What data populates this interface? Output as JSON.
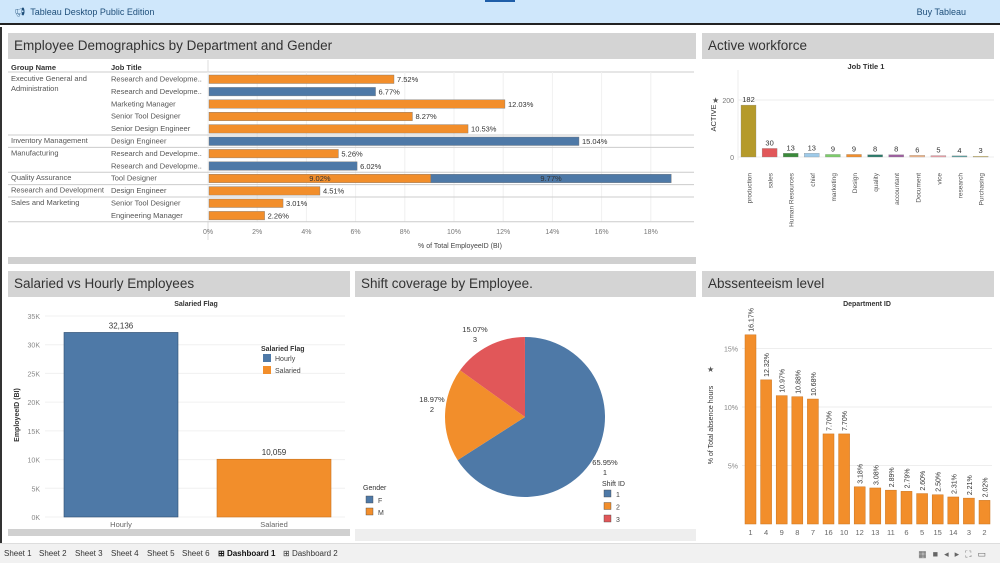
{
  "app": {
    "title": "Tableau Desktop Public Edition",
    "buy_label": "Buy Tableau",
    "brand_icon": "megaphone-icon"
  },
  "panels": {
    "demographics": {
      "title": "Employee Demographics by Department and Gender"
    },
    "active": {
      "title": "Active workforce"
    },
    "salaried": {
      "title": "Salaried vs Hourly Employees"
    },
    "shift": {
      "title": "Shift coverage by Employee."
    },
    "absent": {
      "title": "Abssenteeism level"
    }
  },
  "tabs": [
    {
      "label": "Sheet 1"
    },
    {
      "label": "Sheet 2"
    },
    {
      "label": "Sheet 3"
    },
    {
      "label": "Sheet 4"
    },
    {
      "label": "Sheet 5"
    },
    {
      "label": "Sheet 6"
    },
    {
      "label": "Dashboard 1",
      "active": true
    },
    {
      "label": "Dashboard 2"
    }
  ],
  "colors": {
    "blue": "#4e79a7",
    "orange": "#f28e2b",
    "red": "#e15759",
    "panel": "#d4d4d4"
  },
  "chart_data": [
    {
      "type": "bar",
      "orientation": "horizontal",
      "title": "Employee Demographics by Department and Gender",
      "row_headers": [
        "Group Name",
        "Job Title"
      ],
      "xlabel": "% of Total EmployeeID (BI)",
      "xlim": [
        0,
        19
      ],
      "xticks": [
        "0%",
        "2%",
        "4%",
        "6%",
        "8%",
        "10%",
        "12%",
        "14%",
        "16%",
        "18%"
      ],
      "groups": [
        {
          "name": "Executive General and Administration",
          "rows": [
            {
              "job": "Research and Developme..",
              "segments": [
                {
                  "gender": "M",
                  "value": 7.52
                }
              ],
              "label": "7.52%"
            },
            {
              "job": "Research and Developme..",
              "segments": [
                {
                  "gender": "F",
                  "value": 6.77
                }
              ],
              "label": "6.77%"
            },
            {
              "job": "Marketing Manager",
              "segments": [
                {
                  "gender": "M",
                  "value": 12.03
                }
              ],
              "label": "12.03%"
            },
            {
              "job": "Senior Tool Designer",
              "segments": [
                {
                  "gender": "M",
                  "value": 8.27
                }
              ],
              "label": "8.27%"
            },
            {
              "job": "Senior Design Engineer",
              "segments": [
                {
                  "gender": "M",
                  "value": 10.53
                }
              ],
              "label": "10.53%"
            }
          ]
        },
        {
          "name": "Inventory Management",
          "rows": [
            {
              "job": "Design Engineer",
              "segments": [
                {
                  "gender": "F",
                  "value": 15.04
                }
              ],
              "label": "15.04%"
            }
          ]
        },
        {
          "name": "Manufacturing",
          "rows": [
            {
              "job": "Research and Developme..",
              "segments": [
                {
                  "gender": "M",
                  "value": 5.26
                }
              ],
              "label": "5.26%"
            },
            {
              "job": "Research and Developme..",
              "segments": [
                {
                  "gender": "F",
                  "value": 6.02
                }
              ],
              "label": "6.02%"
            }
          ]
        },
        {
          "name": "Quality Assurance",
          "rows": [
            {
              "job": "Tool Designer",
              "segments": [
                {
                  "gender": "M",
                  "value": 9.02,
                  "label": "9.02%"
                },
                {
                  "gender": "F",
                  "value": 9.77,
                  "label": "9.77%"
                }
              ],
              "label": ""
            }
          ]
        },
        {
          "name": "Research and Development",
          "rows": [
            {
              "job": "Design Engineer",
              "segments": [
                {
                  "gender": "M",
                  "value": 4.51
                }
              ],
              "label": "4.51%"
            }
          ]
        },
        {
          "name": "Sales and Marketing",
          "rows": [
            {
              "job": "Senior Tool Designer",
              "segments": [
                {
                  "gender": "M",
                  "value": 3.01
                }
              ],
              "label": "3.01%"
            },
            {
              "job": "Engineering Manager",
              "segments": [
                {
                  "gender": "M",
                  "value": 2.26
                }
              ],
              "label": "2.26%"
            }
          ]
        }
      ]
    },
    {
      "type": "bar",
      "title": "Job Title 1",
      "ylabel": "ACTIVE",
      "ylim": [
        0,
        300
      ],
      "yticks": [
        "0",
        "200"
      ],
      "categories": [
        "production",
        "sales",
        "Human Resources",
        "chief",
        "marketing",
        "Design",
        "quality",
        "accountant",
        "Document",
        "vice",
        "research",
        "Purchasing"
      ],
      "values": [
        182,
        30,
        13,
        13,
        9,
        9,
        8,
        8,
        6,
        5,
        4,
        3
      ],
      "colors": [
        "#b59a2b",
        "#e15759",
        "#3a8a3a",
        "#9ecae9",
        "#7ccd6a",
        "#f28e2b",
        "#2b7a6a",
        "#9e5fa0",
        "#f5b88a",
        "#f0a0a8",
        "#5aa0a0",
        "#e8d070"
      ]
    },
    {
      "type": "bar",
      "title": "Salaried Flag",
      "ylabel": "EmployeeID (BI)",
      "ylim": [
        0,
        35000
      ],
      "yticks": [
        "0K",
        "5K",
        "10K",
        "15K",
        "20K",
        "25K",
        "30K",
        "35K"
      ],
      "categories": [
        "Hourly",
        "Salaried"
      ],
      "values": [
        32136,
        10059
      ],
      "value_labels": [
        "32,136",
        "10,059"
      ],
      "legend": {
        "title": "Salaried Flag",
        "items": [
          "Hourly",
          "Salaried"
        ],
        "position": "right"
      }
    },
    {
      "type": "pie",
      "title": "Shift coverage by Employee.",
      "slices": [
        {
          "shift": "1",
          "value": 65.95,
          "label": "65.95%"
        },
        {
          "shift": "2",
          "value": 18.97,
          "label": "18.97%"
        },
        {
          "shift": "3",
          "value": 15.07,
          "label": "15.07%"
        }
      ],
      "legend_shift": {
        "title": "Shift ID",
        "items": [
          "1",
          "2",
          "3"
        ],
        "position": "bottom-right"
      },
      "legend_gender": {
        "title": "Gender",
        "items": [
          "F",
          "M"
        ],
        "position": "bottom-left"
      }
    },
    {
      "type": "bar",
      "title": "Department ID",
      "ylabel": "% of Total absence hours",
      "ylim": [
        0,
        18
      ],
      "yticks": [
        "5%",
        "10%",
        "15%"
      ],
      "categories": [
        "1",
        "4",
        "9",
        "8",
        "7",
        "16",
        "10",
        "12",
        "13",
        "11",
        "6",
        "5",
        "15",
        "14",
        "3",
        "2"
      ],
      "values": [
        16.17,
        12.32,
        10.97,
        10.88,
        10.68,
        7.7,
        7.7,
        3.18,
        3.08,
        2.89,
        2.79,
        2.6,
        2.5,
        2.31,
        2.21,
        2.02
      ],
      "value_labels": [
        "16.17%",
        "12.32%",
        "10.97%",
        "10.88%",
        "10.68%",
        "7.70%",
        "7.70%",
        "3.18%",
        "3.08%",
        "2.89%",
        "2.79%",
        "2.60%",
        "2.50%",
        "2.31%",
        "2.21%",
        "2.02%"
      ]
    }
  ]
}
